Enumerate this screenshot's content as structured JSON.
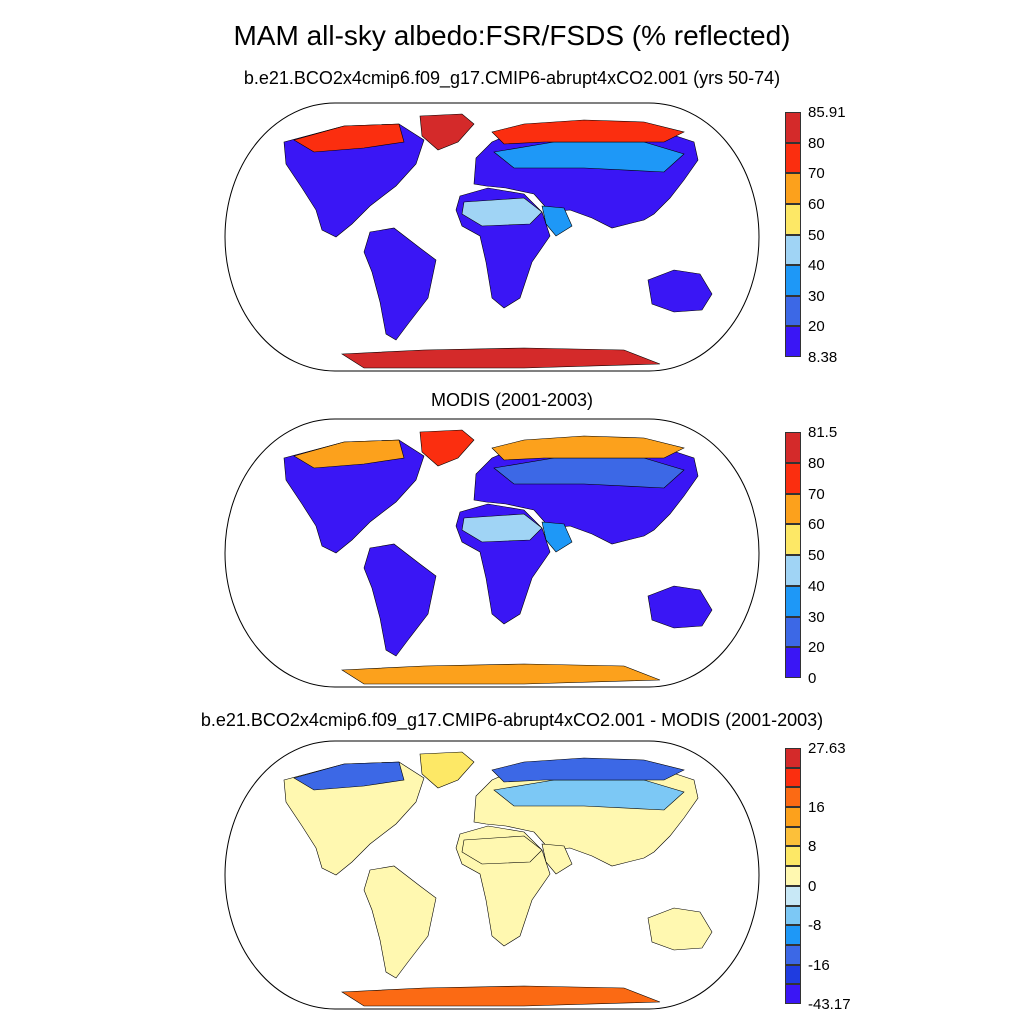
{
  "title": "MAM all-sky albedo:FSR/FSDS (% reflected)",
  "panels": [
    {
      "id": "model",
      "title": "b.e21.BCO2x4cmip6.f09_g17.CMIP6-abrupt4xCO2.001 (yrs 50-74)",
      "colorbar": {
        "colors": [
          "#3a16f5",
          "#3c68e6",
          "#1e98f7",
          "#a0d4f5",
          "#fde866",
          "#fca11c",
          "#fb2e0f",
          "#d42a2a"
        ],
        "labels": [
          "8.38",
          "20",
          "30",
          "40",
          "50",
          "60",
          "70",
          "80",
          "85.91"
        ]
      },
      "regions": {
        "ocean": "#ffffff",
        "land": "#3a16f5",
        "sahara": "#a0d4f5",
        "arabia": "#1e98f7",
        "greenland": "#d42a2a",
        "arctic_coast": "#fb2e0f",
        "subarctic": "#1e98f7",
        "antarctica": "#d42a2a"
      }
    },
    {
      "id": "obs",
      "title": "MODIS (2001-2003)",
      "colorbar": {
        "colors": [
          "#3a16f5",
          "#3c68e6",
          "#1e98f7",
          "#a0d4f5",
          "#fde866",
          "#fca11c",
          "#fb2e0f",
          "#d42a2a"
        ],
        "labels": [
          "0",
          "20",
          "30",
          "40",
          "50",
          "60",
          "70",
          "80",
          "81.5"
        ]
      },
      "regions": {
        "ocean": "#ffffff",
        "land": "#3a16f5",
        "sahara": "#a0d4f5",
        "arabia": "#1e98f7",
        "greenland": "#fb2e0f",
        "arctic_coast": "#fca11c",
        "subarctic": "#3c68e6",
        "antarctica": "#fca11c"
      }
    },
    {
      "id": "diff",
      "title": "b.e21.BCO2x4cmip6.f09_g17.CMIP6-abrupt4xCO2.001 - MODIS (2001-2003)",
      "colorbar": {
        "colors": [
          "#3a16f5",
          "#1f3ce0",
          "#3c68e6",
          "#1e98f7",
          "#7cc8f5",
          "#c8e8f6",
          "#fff8b0",
          "#fde866",
          "#fcc03a",
          "#fca11c",
          "#fb6a14",
          "#fb2e0f",
          "#d42a2a"
        ],
        "labels": [
          "-43.17",
          "-16",
          "-8",
          "0",
          "8",
          "16",
          "27.63"
        ]
      },
      "regions": {
        "ocean": "#ffffff",
        "land": "#fff8b0",
        "sahara": "#fff8b0",
        "arabia": "#fff8b0",
        "greenland": "#fde866",
        "arctic_coast": "#3c68e6",
        "subarctic": "#7cc8f5",
        "antarctica": "#fb6a14"
      }
    }
  ]
}
